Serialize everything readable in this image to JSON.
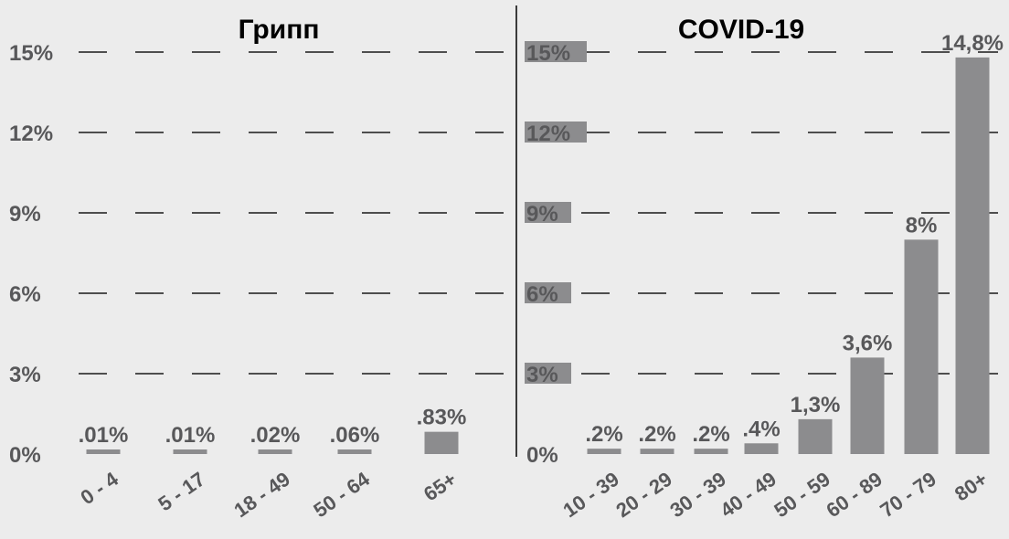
{
  "colors": {
    "background": "#ececec",
    "bar": "#8c8c8e",
    "text": "#58585a",
    "title": "#000000",
    "grid": "#1a1a1a"
  },
  "chart_data": [
    {
      "type": "bar",
      "title": "Грипп",
      "categories": [
        "0 - 4",
        "5 - 17",
        "18 - 49",
        "50 - 64",
        "65+"
      ],
      "values": [
        0.01,
        0.01,
        0.02,
        0.06,
        0.83
      ],
      "value_labels": [
        ".01%",
        ".01%",
        ".02%",
        ".06%",
        ".83%"
      ],
      "yticks": [
        "0%",
        "3%",
        "6%",
        "9%",
        "12%",
        "15%"
      ],
      "ylim": [
        0,
        15
      ],
      "grid": true
    },
    {
      "type": "bar",
      "title": "COVID-19",
      "categories": [
        "10 - 39",
        "20 - 29",
        "30 - 39",
        "40 - 49",
        "50 - 59",
        "60 - 89",
        "70 - 79",
        "80+"
      ],
      "values": [
        0.2,
        0.2,
        0.2,
        0.4,
        1.3,
        3.6,
        8,
        14.8
      ],
      "value_labels": [
        ".2%",
        ".2%",
        ".2%",
        ".4%",
        "1,3%",
        "3,6%",
        "8%",
        "14,8%"
      ],
      "yticks": [
        "0%",
        "3%",
        "6%",
        "9%",
        "12%",
        "15%"
      ],
      "ylim": [
        0,
        15
      ],
      "grid": true
    }
  ]
}
